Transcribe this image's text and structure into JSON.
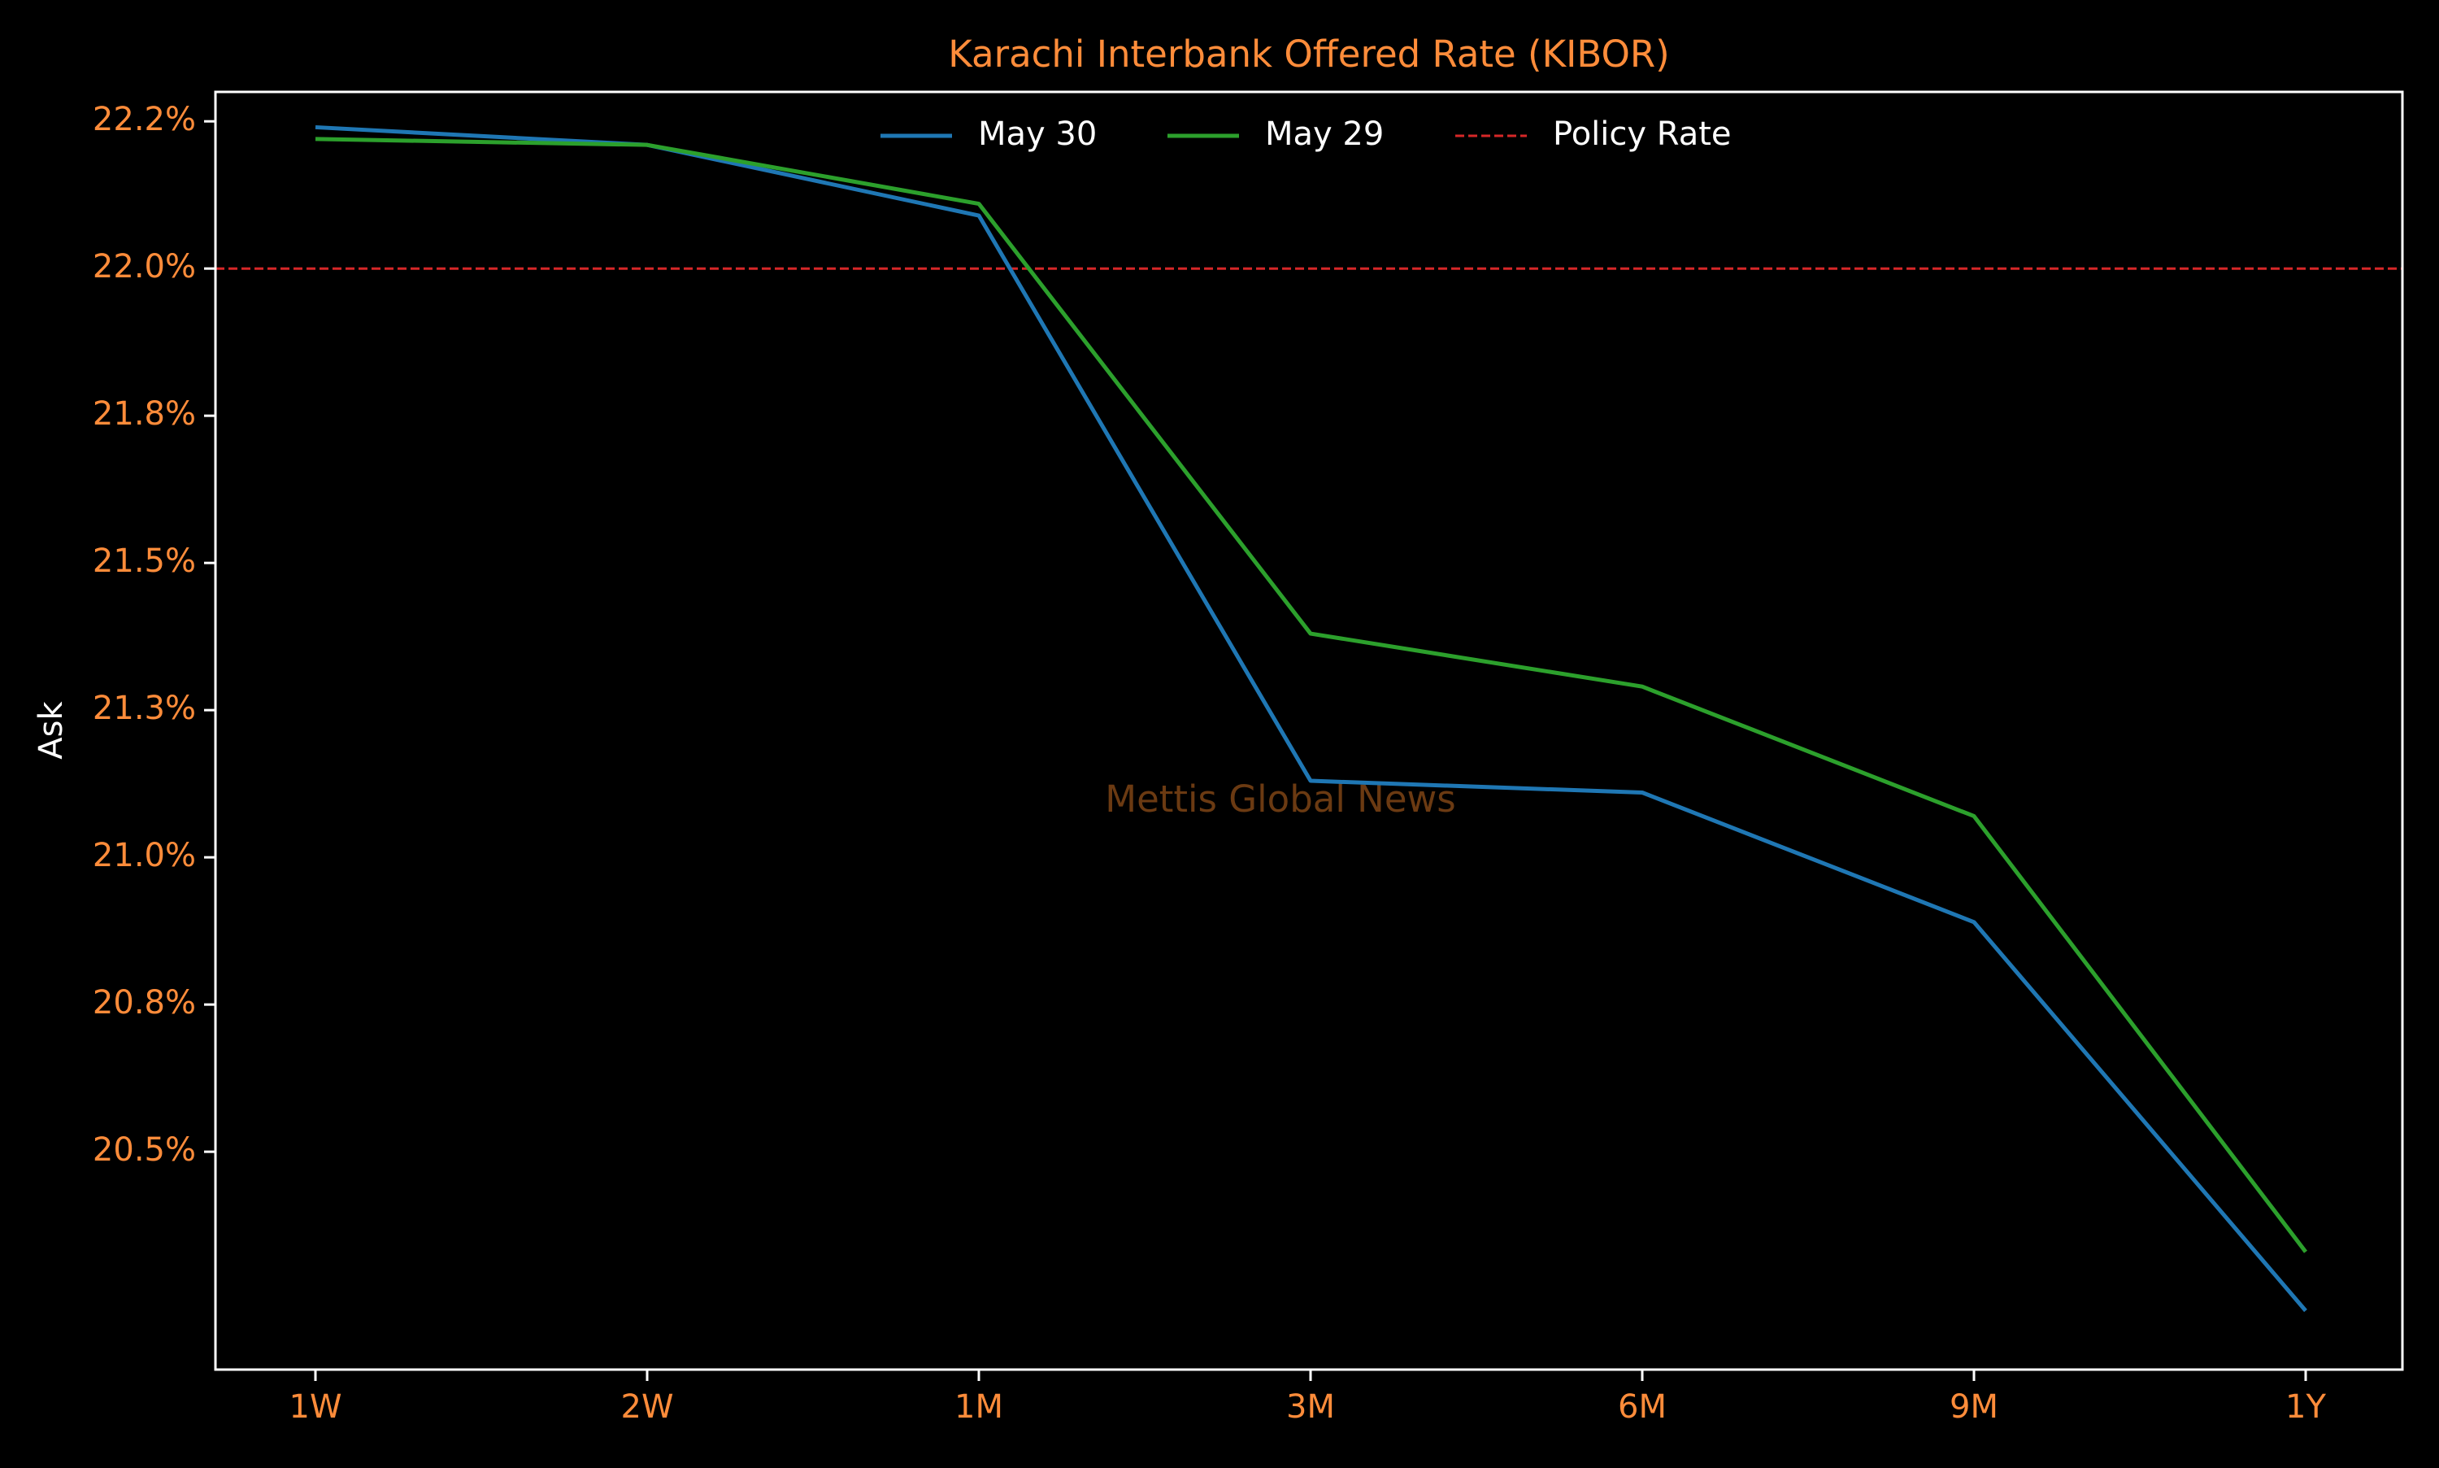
{
  "chart_data": {
    "type": "line",
    "title": "Karachi Interbank Offered Rate (KIBOR)",
    "xlabel": "",
    "ylabel": "Ask",
    "categories": [
      "1W",
      "2W",
      "1M",
      "3M",
      "6M",
      "9M",
      "1Y"
    ],
    "series": [
      {
        "name": "May 30",
        "color": "#1f77b4",
        "values": [
          22.24,
          22.21,
          22.09,
          21.13,
          21.11,
          20.89,
          20.23
        ]
      },
      {
        "name": "May 29",
        "color": "#2ca02c",
        "values": [
          22.22,
          22.21,
          22.11,
          21.38,
          21.29,
          21.07,
          20.33
        ]
      }
    ],
    "reference_lines": [
      {
        "name": "Policy Rate",
        "value": 22.0,
        "color": "#d62728",
        "style": "dashed"
      }
    ],
    "yticks": [
      20.5,
      20.75,
      21.0,
      21.25,
      21.5,
      21.75,
      22.0,
      22.25
    ],
    "ytick_labels": [
      "20.5%",
      "20.8%",
      "21.0%",
      "21.3%",
      "21.5%",
      "21.8%",
      "22.0%",
      "22.2%"
    ],
    "ylim": [
      20.13,
      22.3
    ],
    "legend_position": "top-center",
    "grid": false,
    "watermark": "Mettis Global News",
    "colors": {
      "background": "#000000",
      "frame": "#ffffff",
      "tick_label": "#ff8c3a",
      "title": "#ff8c3a",
      "axis_label": "#ffffff",
      "legend_text": "#ffffff",
      "watermark": "#6b3a12"
    }
  }
}
